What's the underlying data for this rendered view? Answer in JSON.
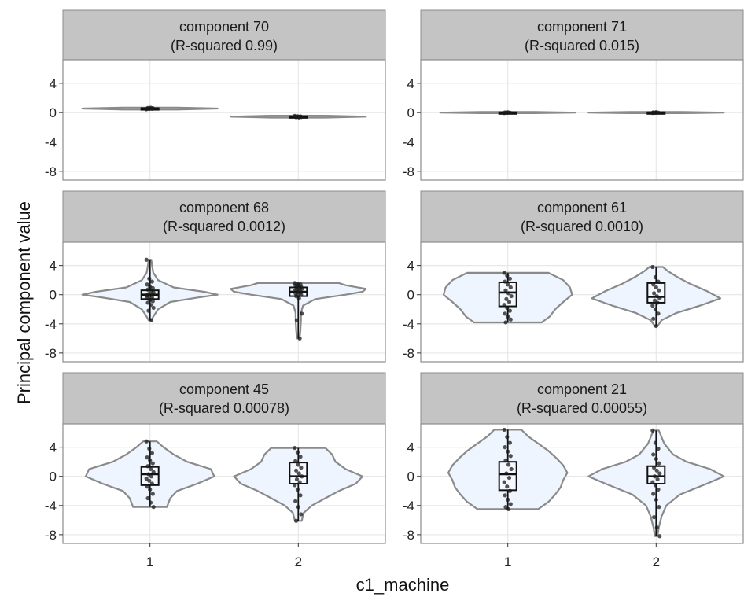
{
  "chart_data": {
    "type": "violin",
    "xlabel": "c1_machine",
    "ylabel": "Principal component value",
    "categories": [
      "1",
      "2"
    ],
    "y_ticks": [
      4,
      0,
      -4,
      -8
    ],
    "y_tick_labels": [
      "4",
      "0",
      "-4",
      "-8"
    ],
    "ylim": [
      -9.2,
      7.2
    ],
    "grid": true,
    "colors": {
      "strip_fill": "#c4c4c4",
      "violin_fill": "#eef5ff",
      "violin_stroke": "#8a8a8a",
      "point": "#1a1a1a",
      "grid_major": "#e6e6e6",
      "panel_border": "#8c8c8c"
    },
    "panels": [
      {
        "title_line1": "component 70",
        "title_line2": "(R-squared 0.99)",
        "groups": [
          {
            "category": "1",
            "min": 0.42,
            "q1": 0.5,
            "median": 0.55,
            "q3": 0.6,
            "max": 0.68,
            "density": [
              [
                0.42,
                0.4
              ],
              [
                0.55,
                1
              ],
              [
                0.68,
                0.4
              ]
            ],
            "points": [
              0.45,
              0.5,
              0.52,
              0.55,
              0.57,
              0.6,
              0.63,
              0.66
            ]
          },
          {
            "category": "2",
            "min": -0.68,
            "q1": -0.6,
            "median": -0.55,
            "q3": -0.5,
            "max": -0.42,
            "density": [
              [
                -0.68,
                0.4
              ],
              [
                -0.55,
                1
              ],
              [
                -0.42,
                0.4
              ]
            ],
            "points": [
              -0.45,
              -0.5,
              -0.52,
              -0.55,
              -0.57,
              -0.6,
              -0.63,
              -0.66
            ]
          }
        ]
      },
      {
        "title_line1": "component 71",
        "title_line2": "(R-squared 0.015)",
        "groups": [
          {
            "category": "1",
            "min": -0.08,
            "q1": -0.04,
            "median": 0.0,
            "q3": 0.04,
            "max": 0.08,
            "density": [
              [
                -0.08,
                0.4
              ],
              [
                0,
                1
              ],
              [
                0.08,
                0.4
              ]
            ],
            "points": [
              -0.06,
              -0.03,
              0,
              0.02,
              0.05
            ]
          },
          {
            "category": "2",
            "min": -0.08,
            "q1": -0.04,
            "median": 0.0,
            "q3": 0.04,
            "max": 0.08,
            "density": [
              [
                -0.08,
                0.4
              ],
              [
                0,
                1
              ],
              [
                0.08,
                0.4
              ]
            ],
            "points": [
              -0.05,
              -0.02,
              0,
              0.03,
              0.06
            ]
          }
        ]
      },
      {
        "title_line1": "component 68",
        "title_line2": "(R-squared 0.0012)",
        "groups": [
          {
            "category": "1",
            "min": -3.5,
            "q1": -0.6,
            "median": 0.0,
            "q3": 0.6,
            "max": 4.8,
            "density": [
              [
                -3.5,
                0.02
              ],
              [
                -3.0,
                0.05
              ],
              [
                -2.0,
                0.12
              ],
              [
                -1.0,
                0.3
              ],
              [
                -0.4,
                0.7
              ],
              [
                0.0,
                1.0
              ],
              [
                0.4,
                0.8
              ],
              [
                1.0,
                0.35
              ],
              [
                2.0,
                0.12
              ],
              [
                3.0,
                0.05
              ],
              [
                4.0,
                0.03
              ],
              [
                4.8,
                0.02
              ]
            ],
            "points": [
              4.8,
              2.2,
              1.8,
              1.4,
              1.1,
              0.9,
              0.7,
              0.5,
              0.3,
              0.1,
              0.0,
              -0.1,
              -0.2,
              -0.4,
              -0.5,
              -0.7,
              -0.9,
              -1.1,
              -1.4,
              -1.8,
              -2.2,
              -3.5
            ]
          },
          {
            "category": "2",
            "min": -6.0,
            "q1": -0.2,
            "median": 0.4,
            "q3": 1.0,
            "max": 1.6,
            "density": [
              [
                -6.0,
                0.02
              ],
              [
                -5.0,
                0.03
              ],
              [
                -3.5,
                0.04
              ],
              [
                -2.5,
                0.04
              ],
              [
                -1.5,
                0.07
              ],
              [
                -0.6,
                0.25
              ],
              [
                0.0,
                0.7
              ],
              [
                0.4,
                0.95
              ],
              [
                0.8,
                1.0
              ],
              [
                1.3,
                0.7
              ],
              [
                1.6,
                0.6
              ]
            ],
            "points": [
              1.6,
              1.5,
              1.4,
              1.3,
              1.2,
              1.1,
              1.0,
              0.9,
              0.8,
              0.7,
              0.6,
              0.5,
              0.4,
              0.3,
              0.2,
              0.1,
              0.0,
              -0.2,
              -0.5,
              -2.6,
              -3.5,
              -6.0
            ]
          }
        ]
      },
      {
        "title_line1": "component 61",
        "title_line2": "(R-squared 0.0010)",
        "groups": [
          {
            "category": "1",
            "min": -3.8,
            "q1": -1.6,
            "median": 0.3,
            "q3": 1.7,
            "max": 3.0,
            "density": [
              [
                -3.8,
                0.5
              ],
              [
                -3.0,
                0.62
              ],
              [
                -2.0,
                0.7
              ],
              [
                -1.0,
                0.82
              ],
              [
                0.0,
                0.95
              ],
              [
                1.0,
                0.92
              ],
              [
                2.0,
                0.82
              ],
              [
                3.0,
                0.6
              ]
            ],
            "points": [
              3.0,
              2.6,
              2.2,
              1.8,
              1.4,
              1.0,
              0.6,
              0.2,
              -0.2,
              -0.6,
              -1.0,
              -1.4,
              -1.8,
              -2.2,
              -2.6,
              -3.0,
              -3.4,
              -3.8
            ]
          },
          {
            "category": "2",
            "min": -4.3,
            "q1": -1.1,
            "median": -0.3,
            "q3": 1.6,
            "max": 3.8,
            "density": [
              [
                -4.3,
                0.02
              ],
              [
                -3.5,
                0.08
              ],
              [
                -2.5,
                0.3
              ],
              [
                -1.5,
                0.65
              ],
              [
                -0.5,
                0.95
              ],
              [
                0.5,
                0.75
              ],
              [
                1.5,
                0.5
              ],
              [
                2.5,
                0.3
              ],
              [
                3.2,
                0.18
              ],
              [
                3.8,
                0.1
              ]
            ],
            "points": [
              3.8,
              2.4,
              1.8,
              1.4,
              1.0,
              0.6,
              0.2,
              -0.2,
              -0.5,
              -0.8,
              -1.1,
              -1.5,
              -2.0,
              -2.6,
              -3.3,
              -4.3
            ]
          }
        ]
      },
      {
        "title_line1": "component 45",
        "title_line2": "(R-squared 0.00078)",
        "groups": [
          {
            "category": "1",
            "min": -4.2,
            "q1": -1.2,
            "median": 0.3,
            "q3": 1.3,
            "max": 4.8,
            "density": [
              [
                -4.2,
                0.25
              ],
              [
                -3.0,
                0.3
              ],
              [
                -2.0,
                0.4
              ],
              [
                -1.0,
                0.7
              ],
              [
                0.0,
                0.95
              ],
              [
                1.0,
                0.9
              ],
              [
                2.0,
                0.55
              ],
              [
                3.0,
                0.35
              ],
              [
                4.0,
                0.2
              ],
              [
                4.8,
                0.1
              ]
            ],
            "points": [
              4.8,
              3.8,
              3.2,
              2.6,
              2.2,
              1.8,
              1.4,
              1.0,
              0.6,
              0.3,
              0.0,
              -0.3,
              -0.6,
              -1.0,
              -1.4,
              -1.8,
              -2.4,
              -3.0,
              -3.6,
              -4.2
            ]
          },
          {
            "category": "2",
            "min": -6.1,
            "q1": -1.0,
            "median": 0.0,
            "q3": 1.9,
            "max": 3.9,
            "density": [
              [
                -6.1,
                0.05
              ],
              [
                -5.0,
                0.08
              ],
              [
                -4.0,
                0.2
              ],
              [
                -3.0,
                0.4
              ],
              [
                -2.0,
                0.6
              ],
              [
                -1.0,
                0.85
              ],
              [
                0.0,
                0.95
              ],
              [
                1.0,
                0.7
              ],
              [
                2.0,
                0.55
              ],
              [
                3.0,
                0.5
              ],
              [
                3.9,
                0.4
              ]
            ],
            "points": [
              3.9,
              3.3,
              2.7,
              2.1,
              1.6,
              1.2,
              0.8,
              0.4,
              0.0,
              -0.4,
              -0.8,
              -1.2,
              -1.8,
              -2.6,
              -3.4,
              -4.2,
              -5.2,
              -6.1
            ]
          }
        ]
      },
      {
        "title_line1": "component 21",
        "title_line2": "(R-squared 0.00055)",
        "groups": [
          {
            "category": "1",
            "min": -4.5,
            "q1": -1.9,
            "median": 0.3,
            "q3": 2.0,
            "max": 6.4,
            "density": [
              [
                -4.5,
                0.45
              ],
              [
                -3.5,
                0.6
              ],
              [
                -2.5,
                0.7
              ],
              [
                -1.5,
                0.78
              ],
              [
                -0.5,
                0.82
              ],
              [
                0.5,
                0.88
              ],
              [
                1.5,
                0.82
              ],
              [
                2.5,
                0.72
              ],
              [
                3.5,
                0.6
              ],
              [
                4.5,
                0.45
              ],
              [
                5.5,
                0.3
              ],
              [
                6.4,
                0.2
              ]
            ],
            "points": [
              6.4,
              5.4,
              4.6,
              4.0,
              3.4,
              2.8,
              2.2,
              1.6,
              1.0,
              0.4,
              -0.2,
              -0.8,
              -1.4,
              -2.0,
              -2.6,
              -3.2,
              -3.8,
              -4.2,
              -4.5
            ]
          },
          {
            "category": "2",
            "min": -8.2,
            "q1": -1.0,
            "median": 0.0,
            "q3": 1.4,
            "max": 6.3,
            "density": [
              [
                -8.2,
                0.02
              ],
              [
                -7.0,
                0.04
              ],
              [
                -5.5,
                0.08
              ],
              [
                -4.0,
                0.15
              ],
              [
                -2.5,
                0.35
              ],
              [
                -1.0,
                0.75
              ],
              [
                0.0,
                1.0
              ],
              [
                1.0,
                0.8
              ],
              [
                2.0,
                0.45
              ],
              [
                3.0,
                0.25
              ],
              [
                4.5,
                0.12
              ],
              [
                6.3,
                0.04
              ]
            ],
            "points": [
              6.3,
              4.6,
              3.8,
              3.0,
              2.4,
              1.8,
              1.2,
              0.8,
              0.4,
              0.0,
              -0.4,
              -0.8,
              -1.2,
              -1.8,
              -2.4,
              -3.2,
              -4.2,
              -5.6,
              -7.0,
              -8.2
            ]
          }
        ]
      }
    ]
  }
}
